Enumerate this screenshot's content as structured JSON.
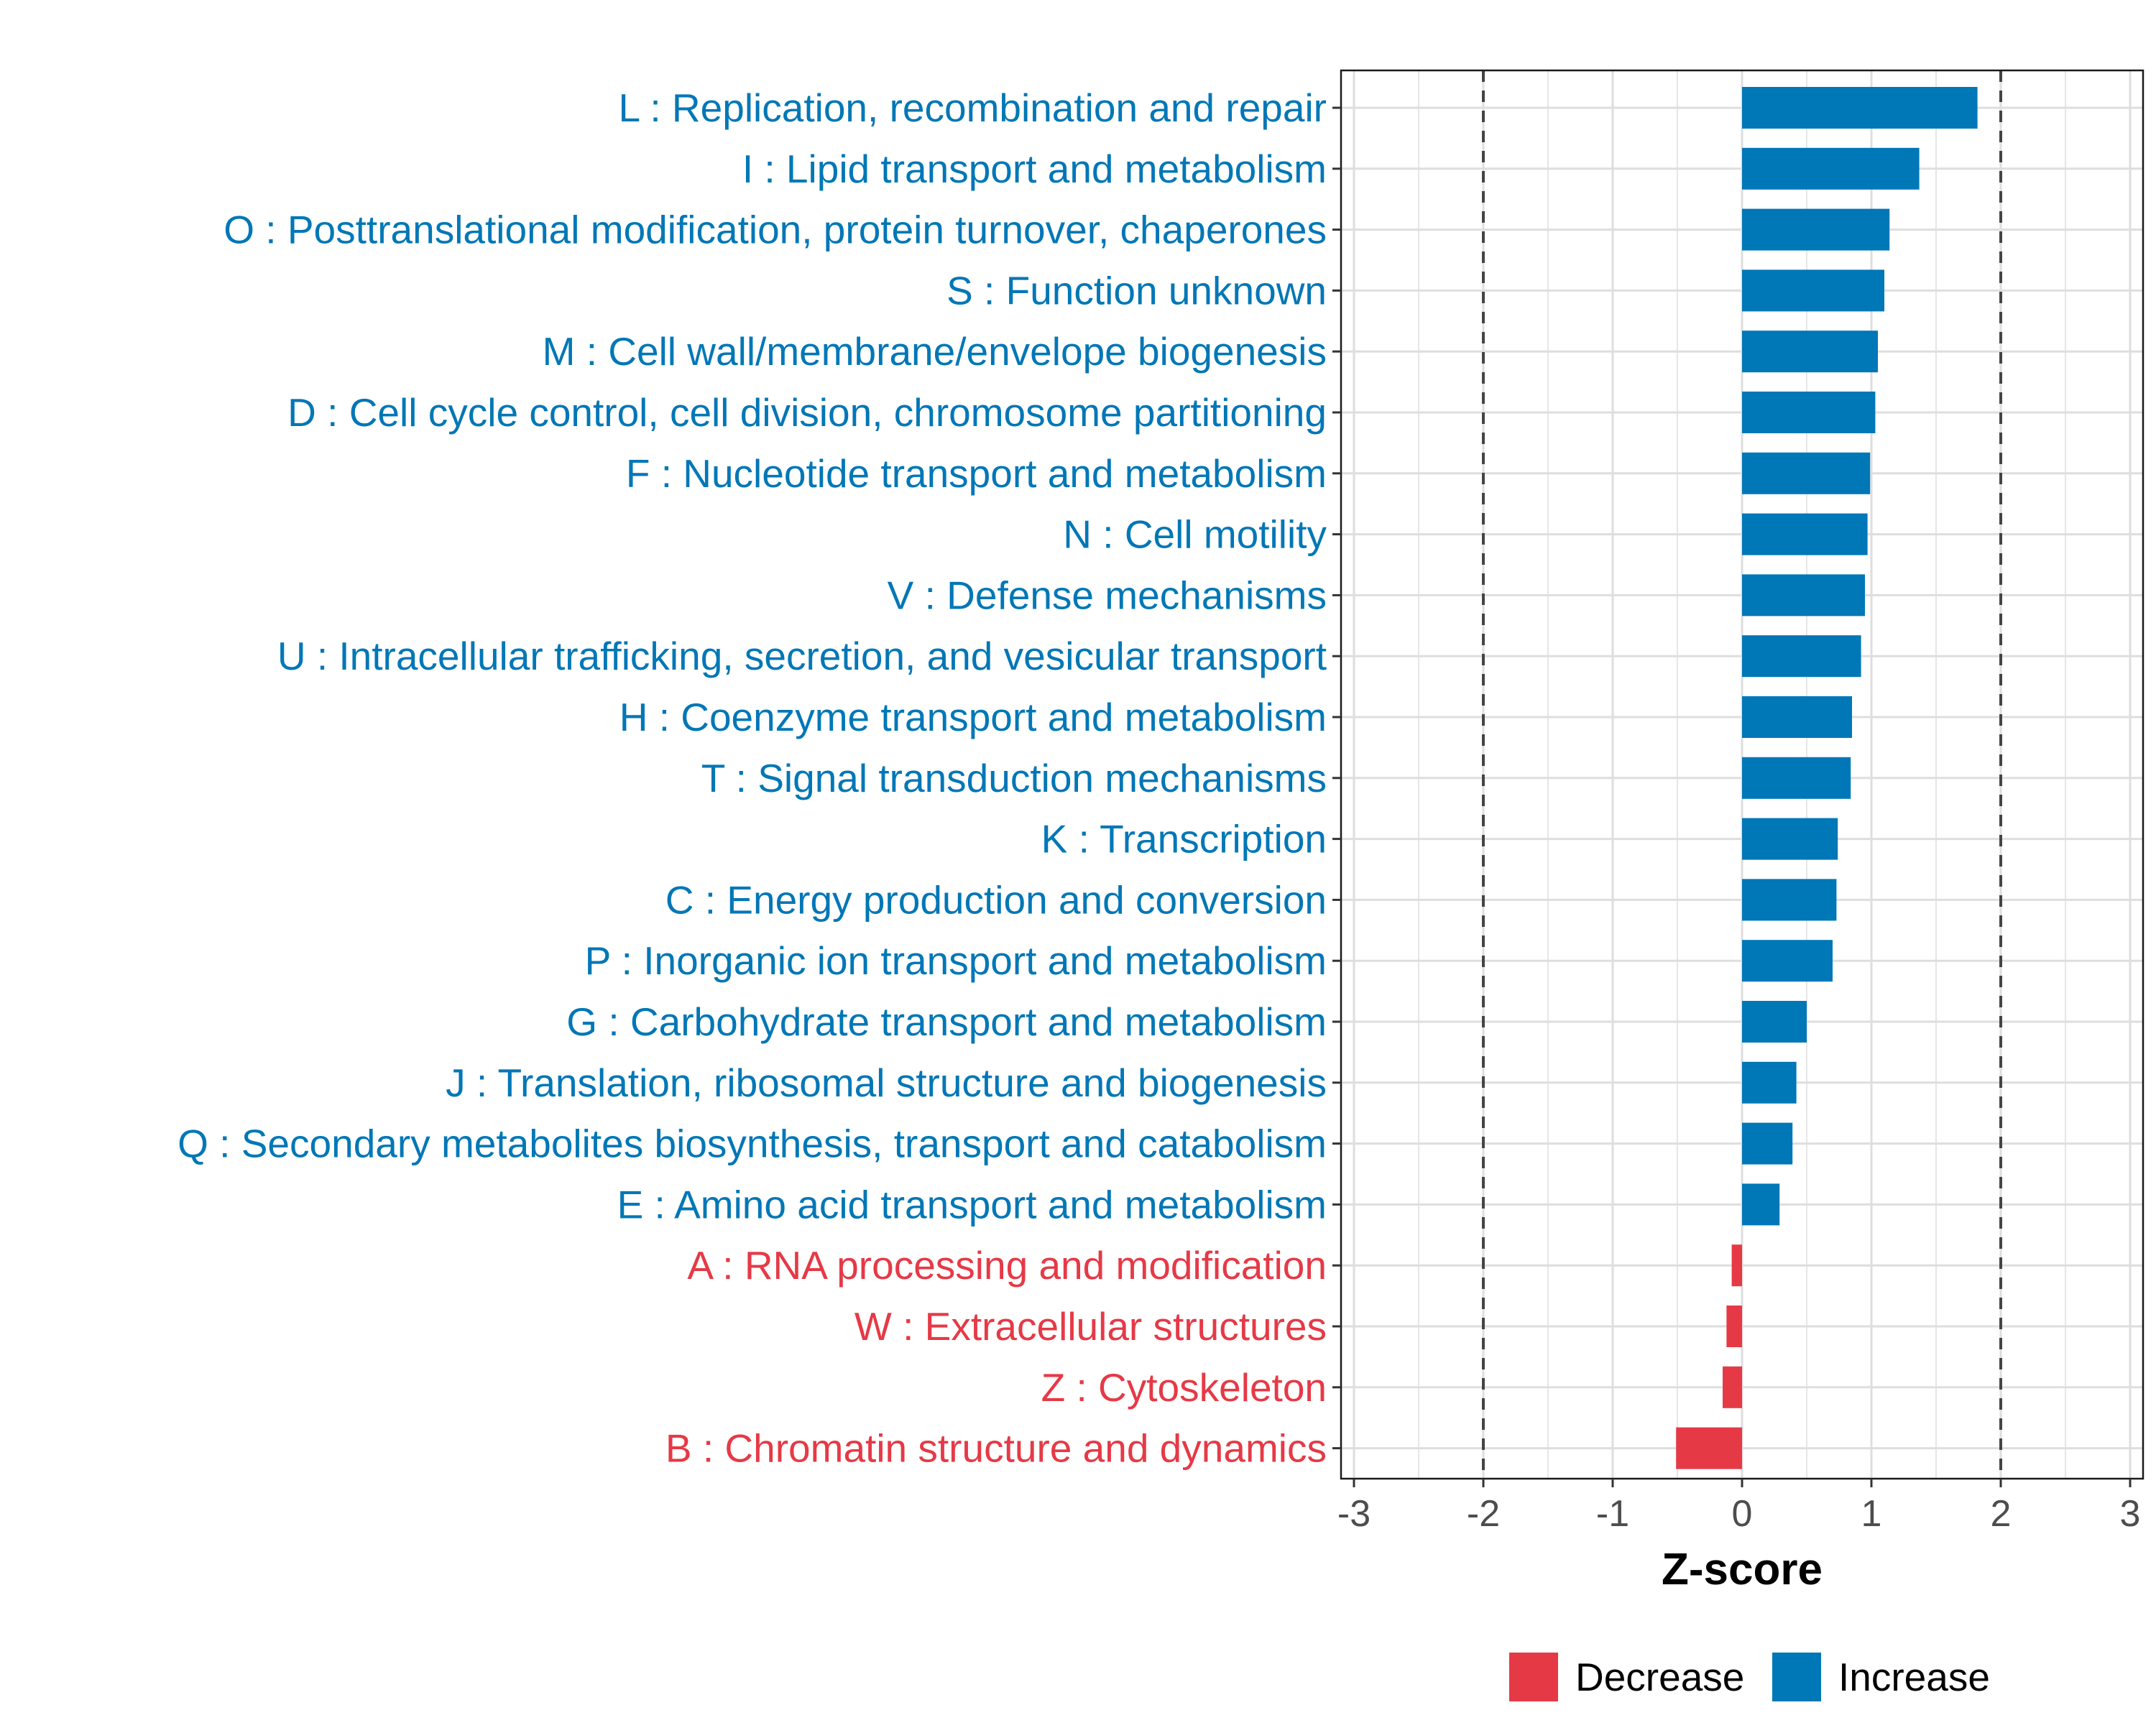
{
  "chart_data": {
    "type": "bar",
    "orientation": "horizontal",
    "title": "",
    "xlabel": "Z-score",
    "ylabel": "",
    "xlim": [
      -3.1,
      3.1
    ],
    "xticks": [
      -3,
      -2,
      -1,
      0,
      1,
      2,
      3
    ],
    "xtick_labels": [
      "-3",
      "-2",
      "-1",
      "0",
      "1",
      "2",
      "3"
    ],
    "reference_lines": [
      -2,
      2
    ],
    "grid": true,
    "legend_position": "bottom",
    "colors": {
      "Decrease": "#E63946",
      "Increase": "#0077B6"
    },
    "legend": [
      {
        "label": "Decrease",
        "color": "#E63946"
      },
      {
        "label": "Increase",
        "color": "#0077B6"
      }
    ],
    "categories": [
      "L : Replication, recombination and repair",
      "I : Lipid transport and metabolism",
      "O : Posttranslational modification, protein turnover, chaperones",
      "S : Function unknown",
      "M : Cell wall/membrane/envelope biogenesis",
      "D : Cell cycle control, cell division, chromosome partitioning",
      "F : Nucleotide transport and metabolism",
      "N : Cell motility",
      "V : Defense mechanisms",
      "U : Intracellular trafficking, secretion, and vesicular transport",
      "H : Coenzyme transport and metabolism",
      "T : Signal transduction mechanisms",
      "K : Transcription",
      "C : Energy production and conversion",
      "P : Inorganic ion transport and metabolism",
      "G : Carbohydrate transport and metabolism",
      "J : Translation, ribosomal structure and biogenesis",
      "Q : Secondary metabolites biosynthesis, transport and catabolism",
      "E : Amino acid transport and metabolism",
      "A : RNA processing and modification",
      "W : Extracellular structures",
      "Z : Cytoskeleton",
      "B : Chromatin structure and dynamics"
    ],
    "values": [
      1.82,
      1.37,
      1.14,
      1.1,
      1.05,
      1.03,
      0.99,
      0.97,
      0.95,
      0.92,
      0.85,
      0.84,
      0.74,
      0.73,
      0.7,
      0.5,
      0.42,
      0.39,
      0.29,
      -0.08,
      -0.12,
      -0.15,
      -0.51
    ],
    "direction": [
      "Increase",
      "Increase",
      "Increase",
      "Increase",
      "Increase",
      "Increase",
      "Increase",
      "Increase",
      "Increase",
      "Increase",
      "Increase",
      "Increase",
      "Increase",
      "Increase",
      "Increase",
      "Increase",
      "Increase",
      "Increase",
      "Increase",
      "Decrease",
      "Decrease",
      "Decrease",
      "Decrease"
    ]
  }
}
